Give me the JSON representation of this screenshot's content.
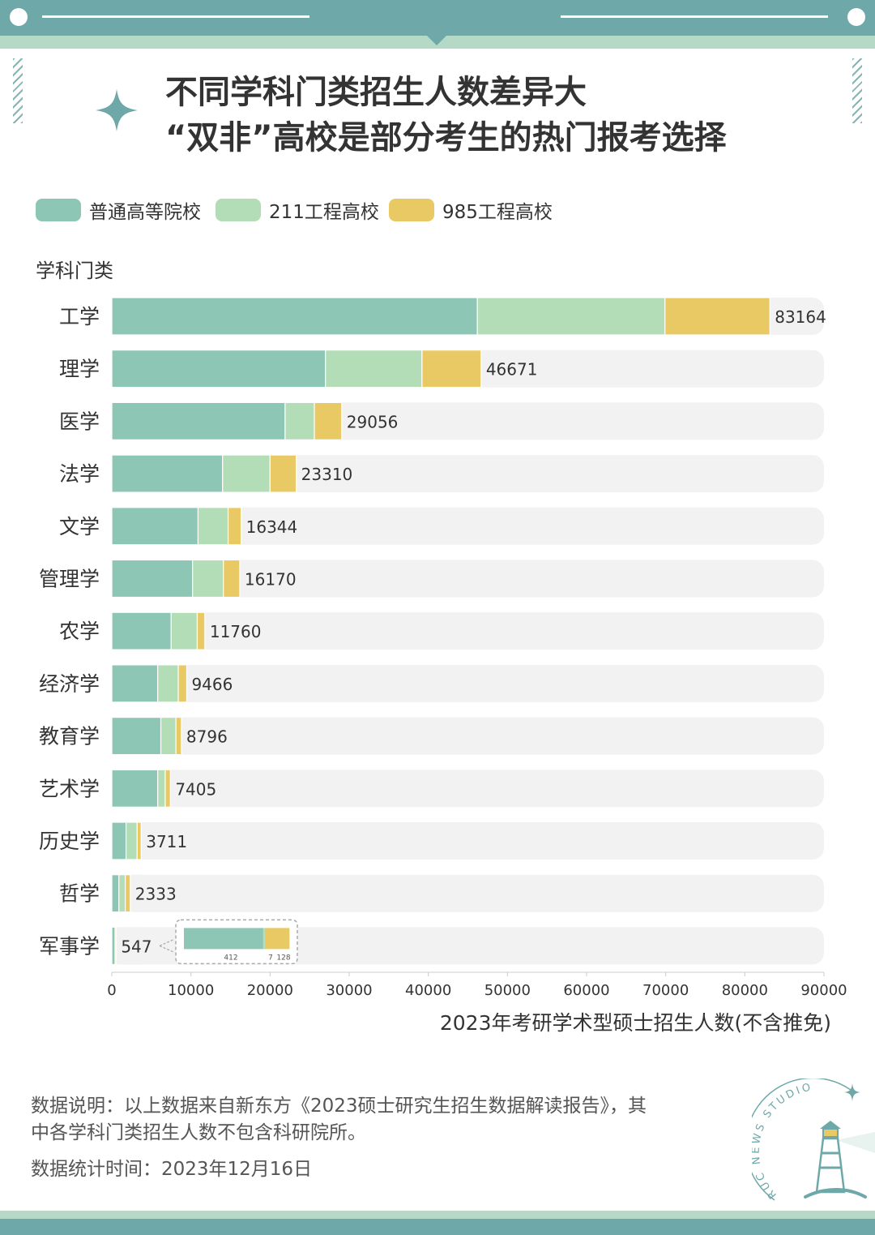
{
  "title": {
    "line1": "不同学科门类招生人数差异大",
    "line2": "“双非”高校是部分考生的热门报考选择"
  },
  "legend": [
    {
      "label": "普通高等院校",
      "color": "#8ec6b6"
    },
    {
      "label": "211工程高校",
      "color": "#b3ddb6"
    },
    {
      "label": "985工程高校",
      "color": "#e9c964"
    }
  ],
  "chart_data": {
    "type": "bar",
    "orientation": "horizontal",
    "stacked": true,
    "y_title": "学科门类",
    "xlabel": "2023年考研学术型硕士招生人数(不含推免)",
    "xlim": [
      0,
      90000
    ],
    "x_ticks": [
      "0",
      "10000",
      "20000",
      "30000",
      "40000",
      "50000",
      "60000",
      "70000",
      "80000",
      "90000"
    ],
    "categories": [
      "工学",
      "理学",
      "医学",
      "法学",
      "文学",
      "管理学",
      "农学",
      "经济学",
      "教育学",
      "艺术学",
      "历史学",
      "哲学",
      "军事学"
    ],
    "totals": [
      83164,
      46671,
      29056,
      23310,
      16344,
      16170,
      11760,
      9466,
      8796,
      7405,
      3711,
      2333,
      547
    ],
    "total_labels": [
      "83164",
      "46671",
      "29056",
      "23310",
      "16344",
      "16170",
      "11760",
      "9466",
      "8796",
      "7405",
      "3711",
      "2333",
      "547"
    ],
    "series": [
      {
        "name": "普通高等院校",
        "values": [
          46200,
          27000,
          21900,
          14000,
          10900,
          10200,
          7500,
          5800,
          6200,
          5800,
          1800,
          900,
          412
        ]
      },
      {
        "name": "211工程高校",
        "values": [
          23700,
          12200,
          3700,
          6000,
          3800,
          3900,
          3300,
          2600,
          1900,
          950,
          1400,
          800,
          7
        ]
      },
      {
        "name": "985工程高校",
        "values": [
          13264,
          7471,
          3456,
          3310,
          1644,
          2070,
          960,
          1066,
          696,
          655,
          511,
          633,
          128
        ]
      }
    ],
    "inset": {
      "category": "军事学",
      "values": [
        412,
        7,
        128
      ],
      "labels": [
        "412",
        "7",
        "128"
      ]
    },
    "bar_track_color": "#f2f2f2"
  },
  "note": {
    "line1": "数据说明：以上数据来自新东方《2023硕士研究生招生数据解读报告》，其",
    "line2": "中各学科门类招生人数不包含科研院所。"
  },
  "stat_time": "数据统计时间：2023年12月16日",
  "logo": {
    "text_studio": "STUDIO",
    "text_news": "NEWS",
    "text_ruc": "RUC",
    "color": "#6fa8a8"
  }
}
